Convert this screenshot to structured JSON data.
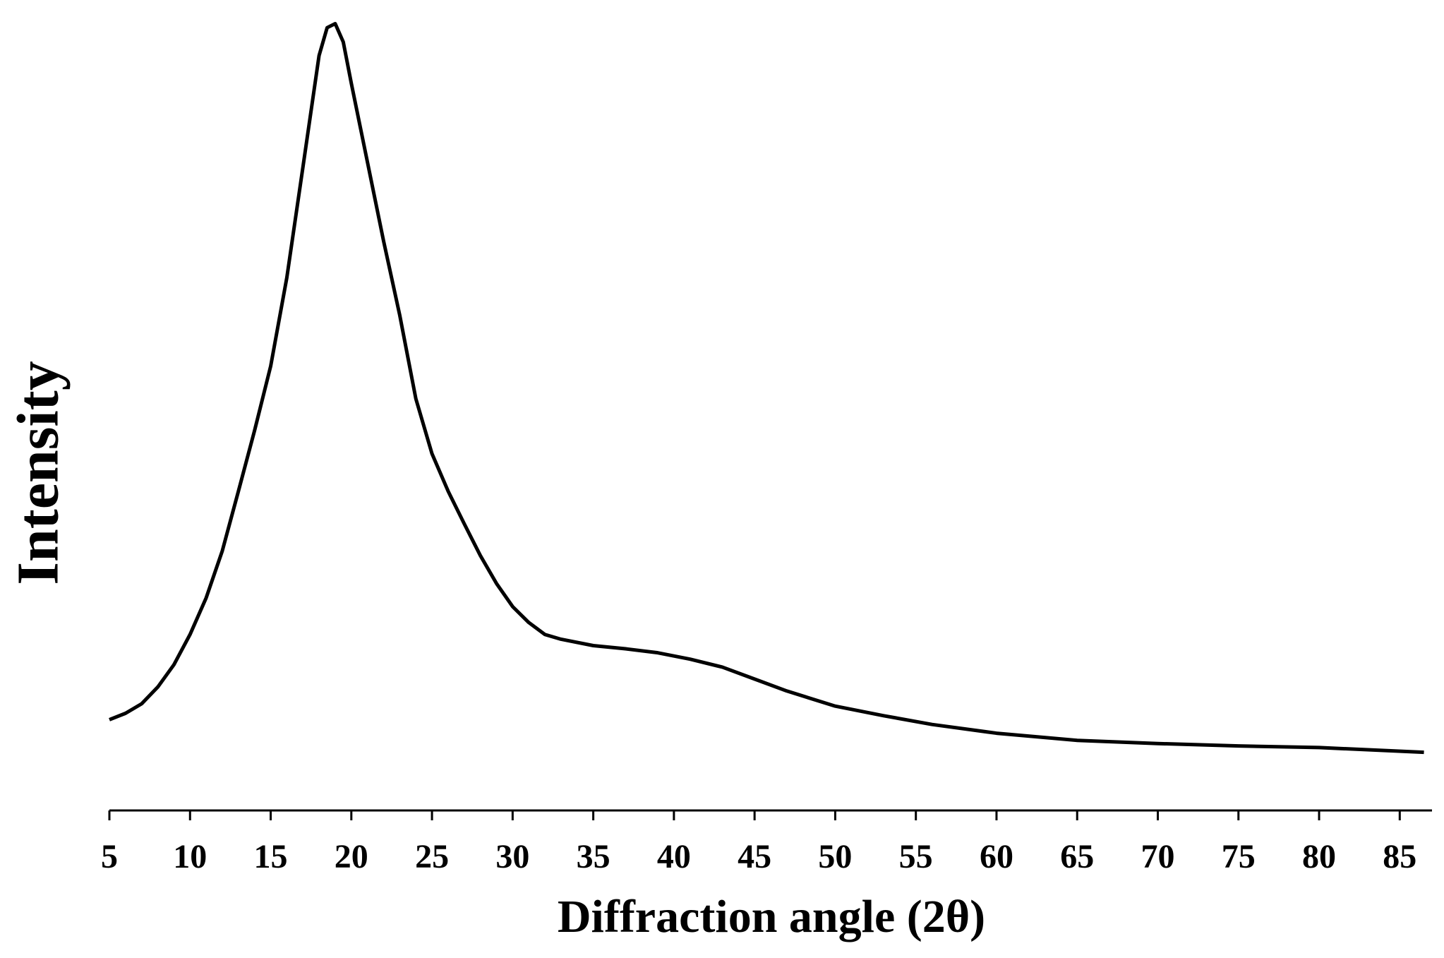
{
  "chart_data": {
    "type": "line",
    "x_label": "Diffraction angle (2θ)",
    "y_label": "Intensity",
    "x": [
      5,
      6,
      7,
      8,
      9,
      10,
      11,
      12,
      13,
      14,
      15,
      16,
      17,
      18,
      18.5,
      19,
      19.5,
      20,
      21,
      22,
      23,
      24,
      25,
      26,
      27,
      28,
      29,
      30,
      31,
      32,
      33,
      35,
      37,
      39,
      41,
      43,
      45,
      47,
      50,
      53,
      56,
      60,
      65,
      70,
      75,
      80,
      86.5
    ],
    "series": [
      {
        "color": "#000000",
        "values": [
          11.4,
          12.2,
          13.4,
          15.5,
          18.3,
          22.1,
          26.7,
          32.6,
          40.1,
          47.7,
          55.8,
          66.9,
          80.8,
          94.8,
          98.3,
          98.8,
          96.5,
          91.3,
          81.4,
          71.5,
          62.2,
          51.7,
          44.8,
          40.1,
          36.0,
          32.0,
          28.5,
          25.6,
          23.6,
          22.1,
          21.5,
          20.7,
          20.3,
          19.8,
          19.0,
          18.0,
          16.5,
          15.0,
          13.1,
          11.9,
          10.8,
          9.7,
          8.8,
          8.4,
          8.1,
          7.9,
          7.3
        ]
      }
    ],
    "xlim": [
      5,
      87
    ],
    "xticks": [
      5,
      10,
      15,
      20,
      25,
      30,
      35,
      40,
      45,
      50,
      55,
      60,
      65,
      70,
      75,
      80,
      85
    ],
    "ylim": [
      0,
      100
    ]
  }
}
